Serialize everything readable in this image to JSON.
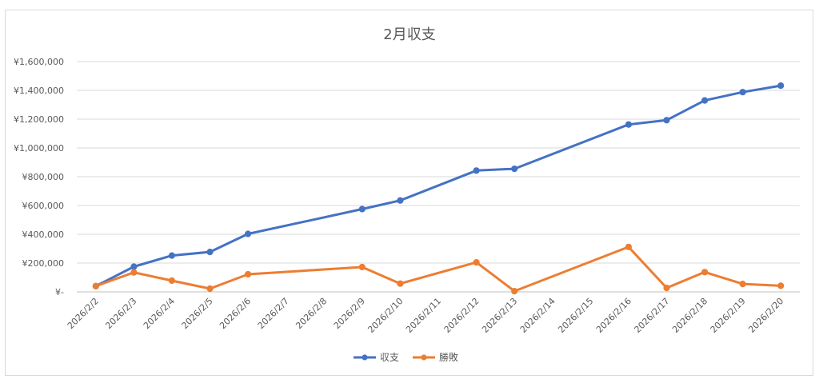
{
  "chart_data": {
    "type": "line",
    "title": "2月収支",
    "xlabel": "",
    "ylabel": "",
    "categories": [
      "2026/2/2",
      "2026/2/3",
      "2026/2/4",
      "2026/2/5",
      "2026/2/6",
      "2026/2/7",
      "2026/2/8",
      "2026/2/9",
      "2026/2/10",
      "2026/2/11",
      "2026/2/12",
      "2026/2/13",
      "2026/2/14",
      "2026/2/15",
      "2026/2/16",
      "2026/2/17",
      "2026/2/18",
      "2026/2/19",
      "2026/2/20"
    ],
    "ylim": [
      0,
      1600000
    ],
    "yticks": [
      0,
      200000,
      400000,
      600000,
      800000,
      1000000,
      1200000,
      1400000,
      1600000
    ],
    "ytick_labels": [
      "¥-",
      "¥200,000",
      "¥400,000",
      "¥600,000",
      "¥800,000",
      "¥1,000,000",
      "¥1,200,000",
      "¥1,400,000",
      "¥1,600,000"
    ],
    "grid": true,
    "legend_position": "bottom",
    "series": [
      {
        "name": "収支",
        "color": "#4472C4",
        "values": [
          40000,
          175000,
          252000,
          277000,
          403000,
          null,
          null,
          575000,
          635000,
          null,
          843000,
          855000,
          null,
          null,
          1163000,
          1193000,
          1330000,
          1388000,
          1433000
        ]
      },
      {
        "name": "勝敗",
        "color": "#ED7D31",
        "values": [
          40000,
          135000,
          78000,
          22000,
          122000,
          null,
          null,
          172000,
          57000,
          null,
          205000,
          5000,
          null,
          null,
          312000,
          27000,
          137000,
          55000,
          42000
        ]
      }
    ]
  }
}
